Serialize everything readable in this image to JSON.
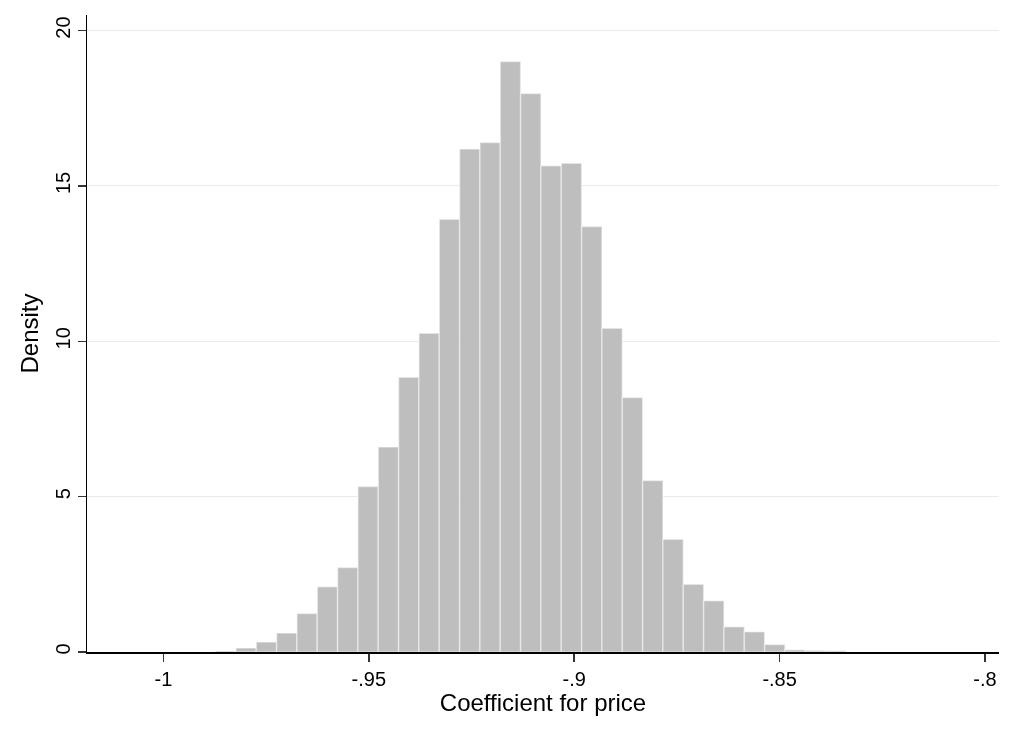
{
  "chart_data": {
    "type": "histogram",
    "xlabel": "Coefficient for price",
    "ylabel": "Density",
    "color": "#bebebe",
    "bins": [
      -0.9873,
      -0.98235,
      -0.9774,
      -0.97245,
      -0.9675,
      -0.96255,
      -0.9576,
      -0.95265,
      -0.9477,
      -0.94275,
      -0.9378,
      -0.93285,
      -0.9279,
      -0.92295,
      -0.918,
      -0.91305,
      -0.9081,
      -0.90315,
      -0.8982,
      -0.89325,
      -0.8883,
      -0.88335,
      -0.8784,
      -0.87345,
      -0.8685,
      -0.86355,
      -0.8586,
      -0.85365,
      -0.8487,
      -0.84375,
      -0.8388,
      -0.83385
    ],
    "values": [
      0.03,
      0.13,
      0.32,
      0.61,
      1.24,
      2.1,
      2.72,
      5.33,
      6.6,
      8.84,
      10.26,
      13.93,
      16.19,
      16.4,
      19.0,
      17.97,
      15.65,
      15.73,
      13.69,
      10.42,
      8.19,
      5.52,
      3.63,
      2.18,
      1.65,
      0.81,
      0.65,
      0.24,
      0.07,
      0.05,
      0.04
    ],
    "xlim": [
      -1.0186,
      -0.7966
    ],
    "xticks": [
      {
        "value": -1,
        "label": "-1"
      },
      {
        "value": -0.95,
        "label": "-.95"
      },
      {
        "value": -0.9,
        "label": "-.9"
      },
      {
        "value": -0.85,
        "label": "-.85"
      },
      {
        "value": -0.8,
        "label": "-.8"
      }
    ],
    "ylim": [
      0,
      20.5
    ],
    "yticks": [
      0,
      5,
      10,
      15,
      20
    ],
    "grid": "y"
  }
}
